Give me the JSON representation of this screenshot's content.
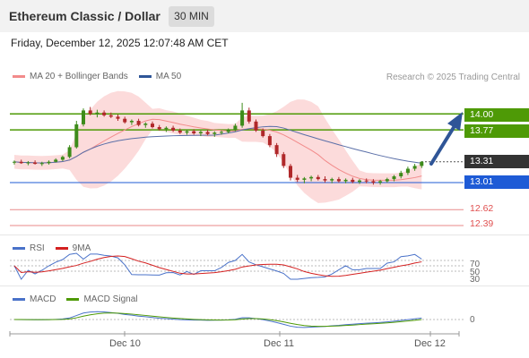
{
  "header": {
    "title": "Ethereum Classic / Dollar",
    "timeframe": "30 MIN"
  },
  "datetime": "Friday, December 12, 2025 12:07:48 AM CET",
  "legend_main": [
    {
      "label": "MA 20 + Bollinger Bands",
      "color": "#f28b8b"
    },
    {
      "label": "MA 50",
      "color": "#2f5597"
    }
  ],
  "copyright": "Research © 2025 Trading Central",
  "price_levels": [
    {
      "value": "14.00",
      "color": "#4e9a06",
      "kind": "resistance"
    },
    {
      "value": "13.77",
      "color": "#4e9a06",
      "kind": "resistance"
    },
    {
      "value": "13.31",
      "color": "#333333",
      "kind": "current"
    },
    {
      "value": "13.01",
      "color": "#1e5bd6",
      "kind": "support"
    },
    {
      "value": "12.62",
      "color": "#e05050",
      "kind": "target"
    },
    {
      "value": "12.39",
      "color": "#e05050",
      "kind": "target"
    }
  ],
  "rsi": {
    "legend": [
      {
        "label": "RSI",
        "color": "#4a72c9"
      },
      {
        "label": "9MA",
        "color": "#d42020"
      }
    ],
    "levels": [
      "70",
      "50",
      "30"
    ]
  },
  "macd": {
    "legend": [
      {
        "label": "MACD",
        "color": "#4a72c9"
      },
      {
        "label": "MACD Signal",
        "color": "#4e9a06"
      }
    ],
    "levels": [
      "0"
    ]
  },
  "x_axis": [
    "Dec 10",
    "Dec 11",
    "Dec 12"
  ],
  "chart_data": {
    "type": "candlestick",
    "ylim": [
      12.3,
      14.3
    ],
    "candles": [
      [
        13.3,
        13.33,
        13.27,
        13.31
      ],
      [
        13.31,
        13.34,
        13.28,
        13.29
      ],
      [
        13.29,
        13.32,
        13.26,
        13.3
      ],
      [
        13.3,
        13.33,
        13.27,
        13.28
      ],
      [
        13.28,
        13.31,
        13.25,
        13.29
      ],
      [
        13.29,
        13.33,
        13.27,
        13.31
      ],
      [
        13.31,
        13.36,
        13.3,
        13.34
      ],
      [
        13.34,
        13.4,
        13.32,
        13.38
      ],
      [
        13.38,
        13.55,
        13.36,
        13.52
      ],
      [
        13.52,
        13.9,
        13.5,
        13.85
      ],
      [
        13.85,
        14.08,
        13.82,
        14.05
      ],
      [
        14.05,
        14.1,
        13.98,
        14.0
      ],
      [
        14.0,
        14.06,
        13.95,
        14.02
      ],
      [
        14.02,
        14.05,
        13.96,
        13.98
      ],
      [
        13.98,
        14.02,
        13.94,
        13.96
      ],
      [
        13.96,
        13.99,
        13.9,
        13.93
      ],
      [
        13.93,
        13.96,
        13.86,
        13.88
      ],
      [
        13.88,
        13.92,
        13.84,
        13.9
      ],
      [
        13.9,
        13.93,
        13.82,
        13.84
      ],
      [
        13.84,
        13.88,
        13.8,
        13.86
      ],
      [
        13.86,
        13.89,
        13.79,
        13.81
      ],
      [
        13.81,
        13.84,
        13.76,
        13.78
      ],
      [
        13.78,
        13.82,
        13.74,
        13.8
      ],
      [
        13.8,
        13.83,
        13.74,
        13.76
      ],
      [
        13.76,
        13.79,
        13.71,
        13.73
      ],
      [
        13.73,
        13.77,
        13.7,
        13.75
      ],
      [
        13.75,
        13.78,
        13.7,
        13.72
      ],
      [
        13.72,
        13.76,
        13.68,
        13.74
      ],
      [
        13.74,
        13.77,
        13.69,
        13.71
      ],
      [
        13.71,
        13.75,
        13.67,
        13.73
      ],
      [
        13.73,
        13.76,
        13.7,
        13.74
      ],
      [
        13.74,
        13.79,
        13.72,
        13.77
      ],
      [
        13.77,
        13.86,
        13.75,
        13.83
      ],
      [
        13.83,
        14.16,
        13.8,
        14.05
      ],
      [
        14.05,
        14.09,
        13.86,
        13.89
      ],
      [
        13.89,
        13.92,
        13.74,
        13.76
      ],
      [
        13.76,
        13.79,
        13.66,
        13.68
      ],
      [
        13.68,
        13.71,
        13.52,
        13.55
      ],
      [
        13.55,
        13.58,
        13.38,
        13.42
      ],
      [
        13.42,
        13.45,
        13.22,
        13.25
      ],
      [
        13.25,
        13.28,
        13.04,
        13.08
      ],
      [
        13.08,
        13.12,
        13.02,
        13.05
      ],
      [
        13.05,
        13.09,
        13.0,
        13.07
      ],
      [
        13.07,
        13.11,
        13.03,
        13.09
      ],
      [
        13.09,
        13.12,
        13.04,
        13.06
      ],
      [
        13.06,
        13.1,
        13.01,
        13.04
      ],
      [
        13.04,
        13.08,
        13.0,
        13.06
      ],
      [
        13.06,
        13.09,
        13.01,
        13.03
      ],
      [
        13.03,
        13.07,
        13.0,
        13.05
      ],
      [
        13.05,
        13.08,
        13.0,
        13.02
      ],
      [
        13.02,
        13.06,
        12.99,
        13.04
      ],
      [
        13.04,
        13.07,
        13.0,
        13.03
      ],
      [
        13.03,
        13.06,
        12.98,
        13.01
      ],
      [
        13.01,
        13.05,
        12.98,
        13.03
      ],
      [
        13.03,
        13.08,
        13.01,
        13.06
      ],
      [
        13.06,
        13.12,
        13.03,
        13.1
      ],
      [
        13.1,
        13.18,
        13.07,
        13.15
      ],
      [
        13.15,
        13.24,
        13.12,
        13.21
      ],
      [
        13.21,
        13.28,
        13.18,
        13.25
      ],
      [
        13.25,
        13.32,
        13.22,
        13.31
      ]
    ]
  }
}
